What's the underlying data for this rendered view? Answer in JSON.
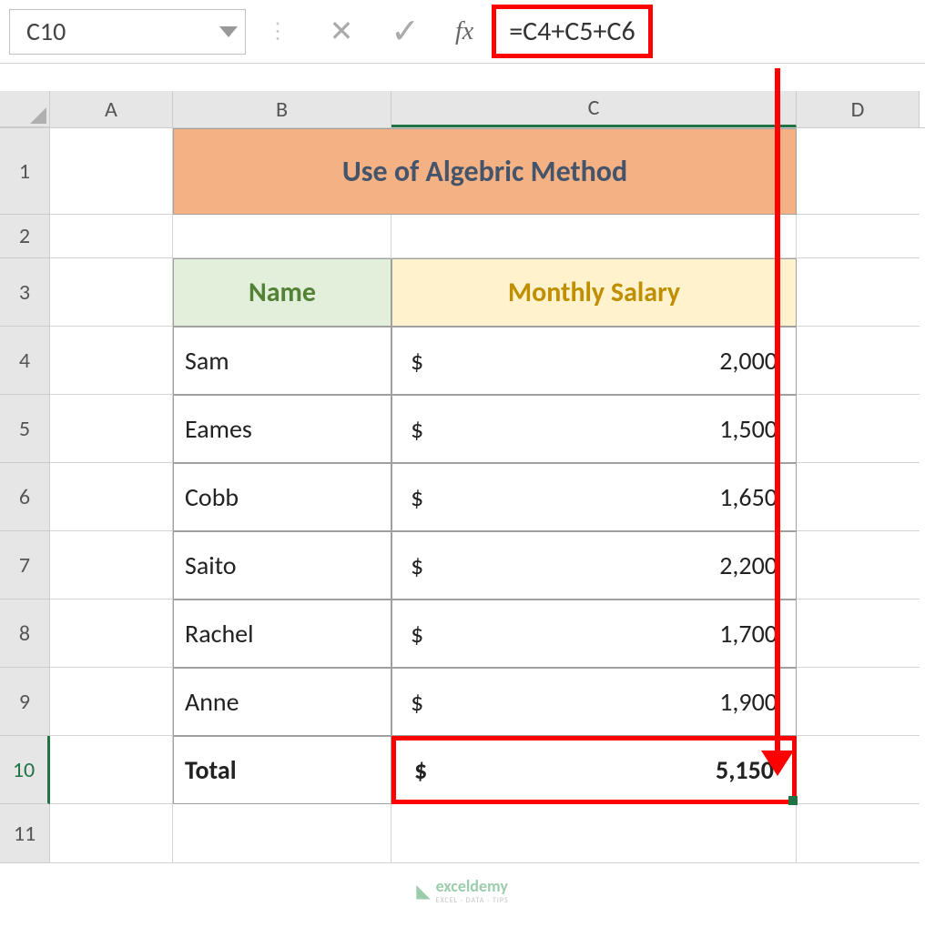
{
  "nameBox": "C10",
  "formula": "=C4+C5+C6",
  "fxLabel": "fx",
  "columns": {
    "a": "A",
    "b": "B",
    "c": "C",
    "d": "D"
  },
  "rows": {
    "r1": "1",
    "r2": "2",
    "r3": "3",
    "r4": "4",
    "r5": "5",
    "r6": "6",
    "r7": "7",
    "r8": "8",
    "r9": "9",
    "r10": "10",
    "r11": "11"
  },
  "title": "Use of Algebric Method",
  "headers": {
    "name": "Name",
    "salary": "Monthly Salary"
  },
  "currency": "$",
  "data": [
    {
      "name": "Sam",
      "salary": "2,000"
    },
    {
      "name": "Eames",
      "salary": "1,500"
    },
    {
      "name": "Cobb",
      "salary": "1,650"
    },
    {
      "name": "Saito",
      "salary": "2,200"
    },
    {
      "name": "Rachel",
      "salary": "1,700"
    },
    {
      "name": "Anne",
      "salary": "1,900"
    }
  ],
  "total": {
    "label": "Total",
    "value": "5,150"
  },
  "watermark": {
    "name": "exceldemy",
    "tagline": "EXCEL · DATA · TIPS"
  },
  "colors": {
    "title_bg": "#f4b183",
    "title_fg": "#44546a",
    "name_header_bg": "#e2efda",
    "name_header_fg": "#548235",
    "salary_header_bg": "#fff2cc",
    "salary_header_fg": "#bf8f00",
    "highlight_border": "#ff0000",
    "excel_green": "#217346"
  }
}
